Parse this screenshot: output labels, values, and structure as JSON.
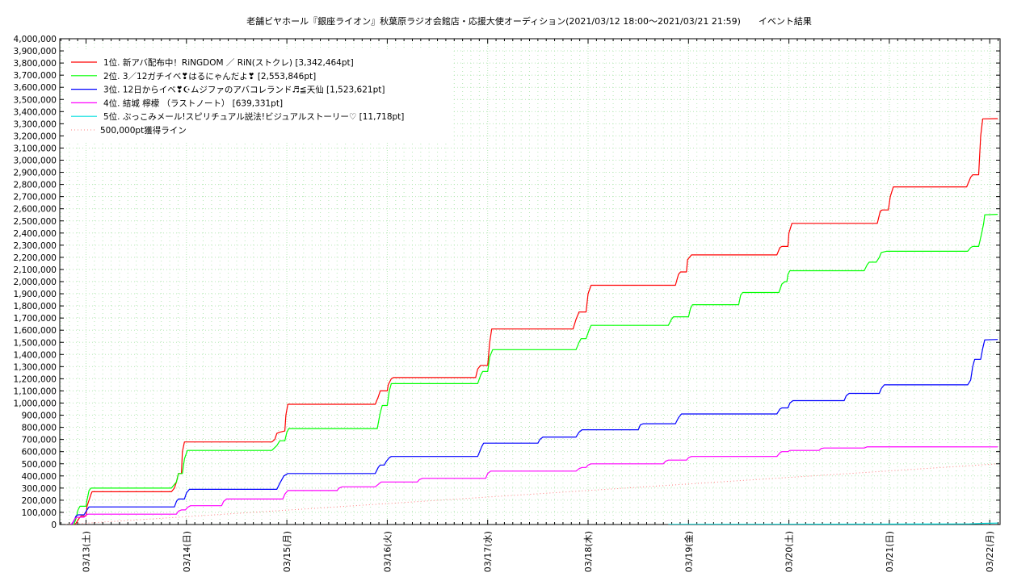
{
  "chart_data": {
    "type": "line",
    "title": "老舗ビヤホール『銀座ライオン』秋葉原ラジオ会館店・応援大使オーディション(2021/03/12 18:00〜2021/03/21 21:59)　　イベント結果",
    "xlabel": "",
    "ylabel": "",
    "x_ticks": [
      "03/13(土)",
      "03/14(日)",
      "03/15(月)",
      "03/16(火)",
      "03/17(水)",
      "03/18(木)",
      "03/19(金)",
      "03/20(土)",
      "03/21(日)",
      "03/22(月)"
    ],
    "xlim": [
      0,
      9.08
    ],
    "ylim": [
      0,
      4000000
    ],
    "y_tick_step": 100000,
    "grid": true,
    "legend_position": "top-left",
    "series": [
      {
        "name": "1位. 新アバ配布中！RiNGDOM ／ RiN(ストクレ) [3,342,464pt]",
        "color": "#ff0000",
        "points": [
          [
            -0.12,
            0
          ],
          [
            -0.1,
            10000
          ],
          [
            -0.07,
            50000
          ],
          [
            -0.05,
            70000
          ],
          [
            0,
            70000
          ],
          [
            0.01,
            150000
          ],
          [
            0.03,
            200000
          ],
          [
            0.05,
            250000
          ],
          [
            0.06,
            270000
          ],
          [
            0.85,
            270000
          ],
          [
            0.88,
            300000
          ],
          [
            0.9,
            350000
          ],
          [
            0.92,
            420000
          ],
          [
            0.95,
            420000
          ],
          [
            0.96,
            600000
          ],
          [
            0.98,
            680000
          ],
          [
            1.85,
            680000
          ],
          [
            1.88,
            700000
          ],
          [
            1.9,
            750000
          ],
          [
            1.93,
            760000
          ],
          [
            1.98,
            770000
          ],
          [
            1.99,
            900000
          ],
          [
            2.01,
            990000
          ],
          [
            2.88,
            990000
          ],
          [
            2.91,
            1050000
          ],
          [
            2.93,
            1100000
          ],
          [
            3.0,
            1100000
          ],
          [
            3.01,
            1150000
          ],
          [
            3.04,
            1200000
          ],
          [
            3.06,
            1210000
          ],
          [
            3.88,
            1210000
          ],
          [
            3.9,
            1280000
          ],
          [
            3.93,
            1310000
          ],
          [
            4.0,
            1310000
          ],
          [
            4.02,
            1500000
          ],
          [
            4.04,
            1610000
          ],
          [
            4.85,
            1610000
          ],
          [
            4.88,
            1690000
          ],
          [
            4.91,
            1750000
          ],
          [
            4.98,
            1750000
          ],
          [
            5.0,
            1900000
          ],
          [
            5.03,
            1970000
          ],
          [
            5.87,
            1970000
          ],
          [
            5.9,
            2060000
          ],
          [
            5.92,
            2080000
          ],
          [
            5.98,
            2080000
          ],
          [
            5.99,
            2180000
          ],
          [
            6.03,
            2220000
          ],
          [
            6.88,
            2220000
          ],
          [
            6.91,
            2280000
          ],
          [
            6.93,
            2290000
          ],
          [
            6.99,
            2290000
          ],
          [
            7.0,
            2400000
          ],
          [
            7.03,
            2480000
          ],
          [
            7.88,
            2480000
          ],
          [
            7.91,
            2580000
          ],
          [
            7.93,
            2590000
          ],
          [
            7.99,
            2590000
          ],
          [
            8.01,
            2700000
          ],
          [
            8.04,
            2780000
          ],
          [
            8.77,
            2780000
          ],
          [
            8.81,
            2860000
          ],
          [
            8.83,
            2880000
          ],
          [
            8.89,
            2880000
          ],
          [
            8.9,
            3050000
          ],
          [
            8.91,
            3200000
          ],
          [
            8.93,
            3340000
          ],
          [
            9.08,
            3342464
          ]
        ]
      },
      {
        "name": "2位. 3／12ガチイベ❣はるにゃんだよ❣ [2,553,846pt]",
        "color": "#00ff00",
        "points": [
          [
            -0.12,
            0
          ],
          [
            -0.1,
            50000
          ],
          [
            -0.08,
            120000
          ],
          [
            -0.06,
            150000
          ],
          [
            0,
            150000
          ],
          [
            0.01,
            200000
          ],
          [
            0.03,
            280000
          ],
          [
            0.05,
            300000
          ],
          [
            0.85,
            300000
          ],
          [
            0.9,
            350000
          ],
          [
            0.92,
            420000
          ],
          [
            0.96,
            420000
          ],
          [
            0.98,
            540000
          ],
          [
            1.01,
            610000
          ],
          [
            1.85,
            610000
          ],
          [
            1.9,
            650000
          ],
          [
            1.93,
            690000
          ],
          [
            1.98,
            690000
          ],
          [
            2.0,
            760000
          ],
          [
            2.02,
            790000
          ],
          [
            2.9,
            790000
          ],
          [
            2.93,
            920000
          ],
          [
            2.95,
            980000
          ],
          [
            3.0,
            980000
          ],
          [
            3.02,
            1100000
          ],
          [
            3.04,
            1160000
          ],
          [
            3.9,
            1160000
          ],
          [
            3.93,
            1230000
          ],
          [
            3.95,
            1260000
          ],
          [
            4.0,
            1260000
          ],
          [
            4.02,
            1380000
          ],
          [
            4.05,
            1440000
          ],
          [
            4.88,
            1440000
          ],
          [
            4.91,
            1500000
          ],
          [
            4.93,
            1530000
          ],
          [
            4.98,
            1530000
          ],
          [
            5.01,
            1600000
          ],
          [
            5.03,
            1640000
          ],
          [
            5.8,
            1640000
          ],
          [
            5.83,
            1690000
          ],
          [
            5.85,
            1710000
          ],
          [
            6.0,
            1710000
          ],
          [
            6.02,
            1780000
          ],
          [
            6.04,
            1810000
          ],
          [
            6.5,
            1810000
          ],
          [
            6.52,
            1890000
          ],
          [
            6.54,
            1910000
          ],
          [
            6.9,
            1910000
          ],
          [
            6.93,
            1980000
          ],
          [
            6.96,
            2000000
          ],
          [
            6.98,
            2000000
          ],
          [
            6.99,
            2060000
          ],
          [
            7.01,
            2090000
          ],
          [
            7.75,
            2090000
          ],
          [
            7.78,
            2140000
          ],
          [
            7.8,
            2160000
          ],
          [
            7.87,
            2160000
          ],
          [
            7.9,
            2200000
          ],
          [
            7.92,
            2240000
          ],
          [
            7.97,
            2250000
          ],
          [
            8.78,
            2250000
          ],
          [
            8.81,
            2280000
          ],
          [
            8.83,
            2290000
          ],
          [
            8.89,
            2290000
          ],
          [
            8.92,
            2400000
          ],
          [
            8.94,
            2480000
          ],
          [
            8.95,
            2550000
          ],
          [
            9.08,
            2553846
          ]
        ]
      },
      {
        "name": "3位. 12日からイベ❣☪ムジファのアバコレランド♬≦天仙 [1,523,621pt]",
        "color": "#0000ff",
        "points": [
          [
            -0.14,
            0
          ],
          [
            -0.12,
            30000
          ],
          [
            -0.1,
            70000
          ],
          [
            -0.08,
            80000
          ],
          [
            -0.02,
            80000
          ],
          [
            0.01,
            120000
          ],
          [
            0.03,
            145000
          ],
          [
            0.88,
            145000
          ],
          [
            0.9,
            190000
          ],
          [
            0.92,
            210000
          ],
          [
            0.98,
            210000
          ],
          [
            1.0,
            260000
          ],
          [
            1.03,
            290000
          ],
          [
            1.9,
            290000
          ],
          [
            1.93,
            340000
          ],
          [
            1.95,
            370000
          ],
          [
            1.97,
            400000
          ],
          [
            1.99,
            410000
          ],
          [
            2.01,
            420000
          ],
          [
            2.88,
            420000
          ],
          [
            2.91,
            470000
          ],
          [
            2.93,
            490000
          ],
          [
            2.97,
            490000
          ],
          [
            2.99,
            520000
          ],
          [
            3.02,
            550000
          ],
          [
            3.04,
            560000
          ],
          [
            3.9,
            560000
          ],
          [
            3.92,
            600000
          ],
          [
            3.94,
            640000
          ],
          [
            3.96,
            670000
          ],
          [
            4.5,
            670000
          ],
          [
            4.52,
            700000
          ],
          [
            4.55,
            720000
          ],
          [
            4.88,
            720000
          ],
          [
            4.91,
            760000
          ],
          [
            4.94,
            780000
          ],
          [
            5.5,
            780000
          ],
          [
            5.52,
            820000
          ],
          [
            5.55,
            830000
          ],
          [
            5.87,
            830000
          ],
          [
            5.9,
            880000
          ],
          [
            5.93,
            910000
          ],
          [
            6.88,
            910000
          ],
          [
            6.91,
            950000
          ],
          [
            6.93,
            960000
          ],
          [
            6.99,
            960000
          ],
          [
            7.01,
            1000000
          ],
          [
            7.04,
            1020000
          ],
          [
            7.55,
            1020000
          ],
          [
            7.57,
            1060000
          ],
          [
            7.6,
            1080000
          ],
          [
            7.9,
            1080000
          ],
          [
            7.92,
            1120000
          ],
          [
            7.95,
            1150000
          ],
          [
            8.78,
            1150000
          ],
          [
            8.81,
            1190000
          ],
          [
            8.83,
            1300000
          ],
          [
            8.85,
            1360000
          ],
          [
            8.91,
            1360000
          ],
          [
            8.93,
            1450000
          ],
          [
            8.95,
            1520000
          ],
          [
            9.08,
            1523621
          ]
        ]
      },
      {
        "name": "4位. 結城 檸檬 （ラストノート） [639,331pt]",
        "color": "#ff00ff",
        "points": [
          [
            -0.15,
            0
          ],
          [
            -0.13,
            20000
          ],
          [
            -0.11,
            50000
          ],
          [
            -0.09,
            60000
          ],
          [
            -0.02,
            60000
          ],
          [
            0.0,
            80000
          ],
          [
            0.02,
            85000
          ],
          [
            0.9,
            85000
          ],
          [
            0.92,
            110000
          ],
          [
            0.95,
            120000
          ],
          [
            0.99,
            120000
          ],
          [
            1.01,
            140000
          ],
          [
            1.04,
            155000
          ],
          [
            1.35,
            155000
          ],
          [
            1.37,
            190000
          ],
          [
            1.4,
            210000
          ],
          [
            1.96,
            210000
          ],
          [
            1.98,
            250000
          ],
          [
            2.01,
            280000
          ],
          [
            2.5,
            280000
          ],
          [
            2.52,
            300000
          ],
          [
            2.55,
            310000
          ],
          [
            2.88,
            310000
          ],
          [
            2.91,
            330000
          ],
          [
            2.94,
            350000
          ],
          [
            3.3,
            350000
          ],
          [
            3.32,
            370000
          ],
          [
            3.35,
            380000
          ],
          [
            3.98,
            380000
          ],
          [
            4.0,
            420000
          ],
          [
            4.03,
            440000
          ],
          [
            4.88,
            440000
          ],
          [
            4.91,
            460000
          ],
          [
            4.94,
            470000
          ],
          [
            4.98,
            470000
          ],
          [
            5.0,
            490000
          ],
          [
            5.03,
            500000
          ],
          [
            5.75,
            500000
          ],
          [
            5.77,
            520000
          ],
          [
            5.8,
            530000
          ],
          [
            5.98,
            530000
          ],
          [
            6.0,
            550000
          ],
          [
            6.03,
            560000
          ],
          [
            6.88,
            560000
          ],
          [
            6.91,
            590000
          ],
          [
            6.93,
            600000
          ],
          [
            6.99,
            600000
          ],
          [
            7.01,
            610000
          ],
          [
            7.3,
            610000
          ],
          [
            7.32,
            625000
          ],
          [
            7.35,
            630000
          ],
          [
            7.75,
            630000
          ],
          [
            7.78,
            640000
          ],
          [
            9.08,
            639331
          ]
        ]
      },
      {
        "name": "5位. ぶっこみメール!スピリチュアル説法!ビジュアルストーリー♡ [11,718pt]",
        "color": "#00dddd",
        "points": [
          [
            5.8,
            0
          ],
          [
            5.82,
            1500
          ],
          [
            7.0,
            2000
          ],
          [
            8.0,
            3000
          ],
          [
            8.8,
            5000
          ],
          [
            8.95,
            10000
          ],
          [
            9.08,
            11718
          ]
        ]
      },
      {
        "name": "500,000pt獲得ライン",
        "color": "#ff8080",
        "dotted": true,
        "points": [
          [
            -0.2,
            0
          ],
          [
            9.08,
            500000
          ]
        ]
      }
    ]
  }
}
